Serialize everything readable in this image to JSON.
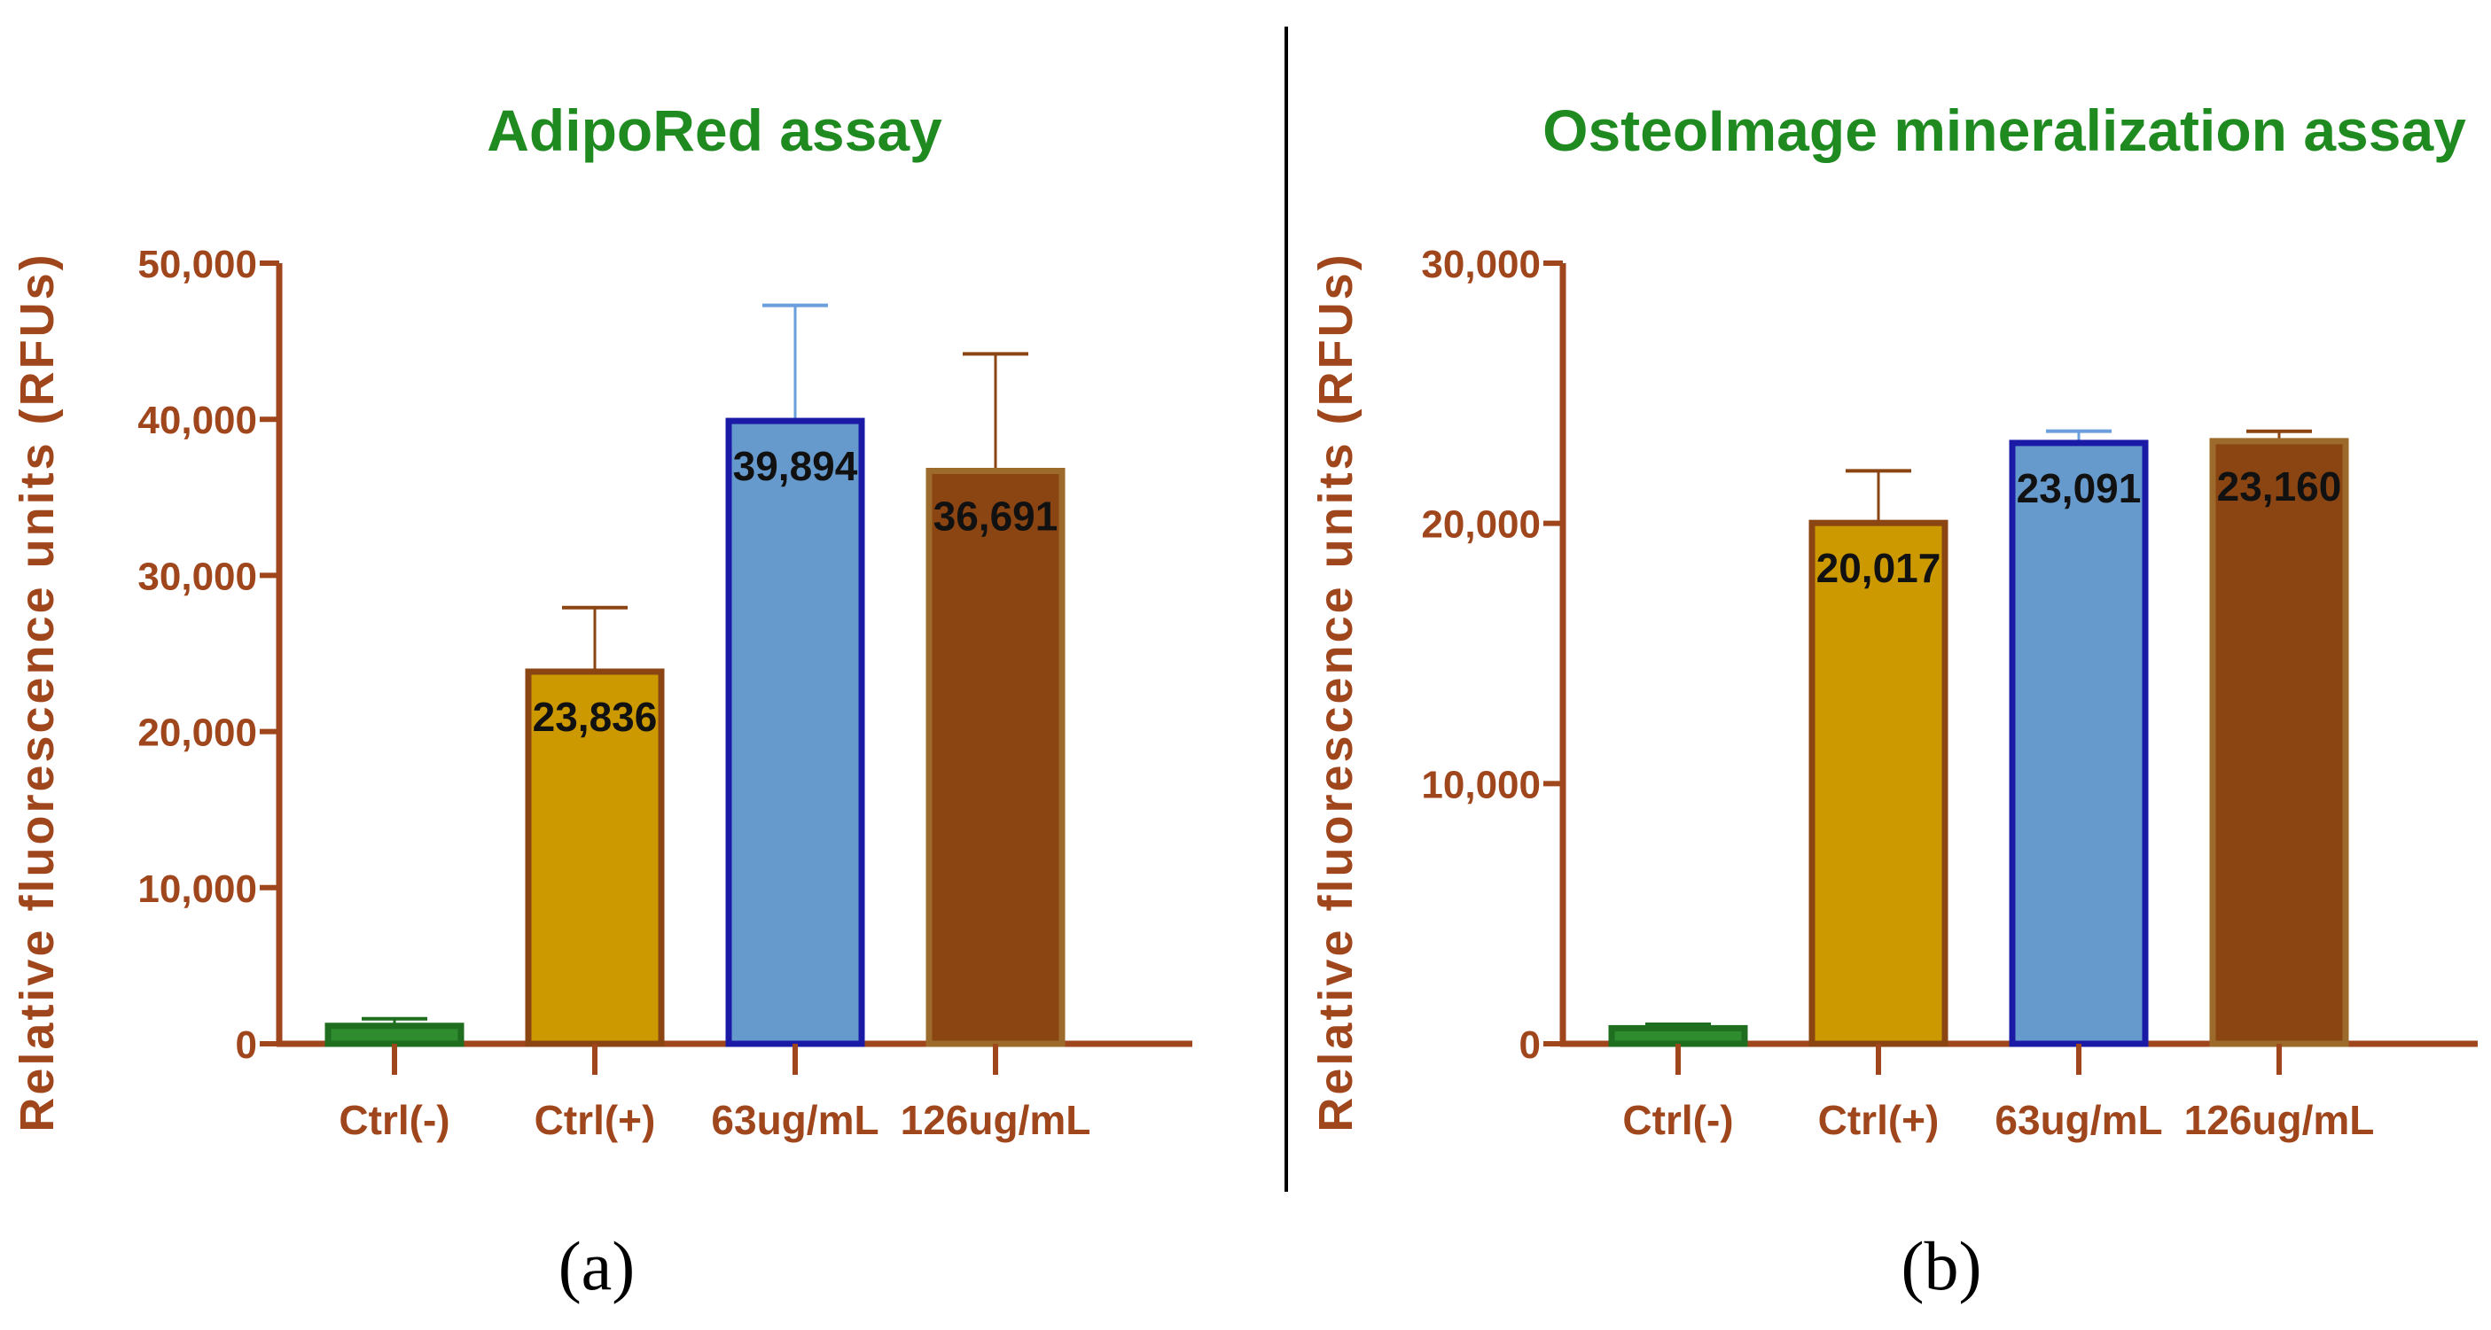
{
  "colors": {
    "axis": "#a0461c",
    "title": "#1f8a1f",
    "divider": "#000000"
  },
  "chart_data": [
    {
      "type": "bar",
      "panel_label": "(a)",
      "title": "AdipoRed assay",
      "ylabel": "Relative fluorescence  units (RFUs)",
      "xlabel": "",
      "ylim": [
        0,
        50000
      ],
      "yticks": [
        0,
        10000,
        20000,
        30000,
        40000,
        50000
      ],
      "ytick_labels": [
        "0",
        "10,000",
        "20,000",
        "30,000",
        "40,000",
        "50,000"
      ],
      "categories": [
        "Ctrl(-)",
        "Ctrl(+)",
        "63ug/mL",
        "126ug/mL"
      ],
      "values": [
        1150,
        23836,
        39894,
        36691
      ],
      "errors": [
        450,
        4100,
        7400,
        7500
      ],
      "data_labels": [
        "",
        "23,836",
        "39,894",
        "36,691"
      ],
      "bar_fill": [
        "#2e8b2e",
        "#cc9900",
        "#6699cc",
        "#8b4513"
      ],
      "bar_stroke": [
        "#1f6e1f",
        "#8b4513",
        "#1a1aa6",
        "#9c6a2a"
      ],
      "error_color": [
        "#1f6e1f",
        "#8b4513",
        "#6a9edc",
        "#8b4513"
      ],
      "grid": false
    },
    {
      "type": "bar",
      "panel_label": "(b)",
      "title": "OsteoImage mineralization assay",
      "ylabel": "Relative fluorescence  units (RFUs)",
      "xlabel": "",
      "ylim": [
        0,
        30000
      ],
      "yticks": [
        0,
        10000,
        20000,
        30000
      ],
      "ytick_labels": [
        "0",
        "10,000",
        "20,000",
        "30,000"
      ],
      "categories": [
        "Ctrl(-)",
        "Ctrl(+)",
        "63ug/mL",
        "126ug/mL"
      ],
      "values": [
        600,
        20017,
        23091,
        23160
      ],
      "errors": [
        150,
        2000,
        450,
        380
      ],
      "data_labels": [
        "",
        "20,017",
        "23,091",
        "23,160"
      ],
      "bar_fill": [
        "#2e8b2e",
        "#cc9900",
        "#6699cc",
        "#8b4513"
      ],
      "bar_stroke": [
        "#1f6e1f",
        "#8b4513",
        "#1a1aa6",
        "#9c6a2a"
      ],
      "error_color": [
        "#1f6e1f",
        "#8b4513",
        "#6a9edc",
        "#8b4513"
      ],
      "grid": false
    }
  ]
}
